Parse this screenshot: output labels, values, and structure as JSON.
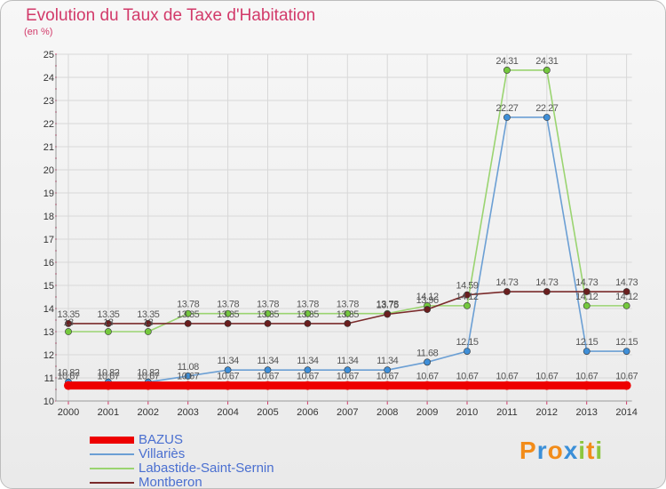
{
  "title": "Evolution du Taux de Taxe d'Habitation",
  "unit": "(en %)",
  "logo": "Proxiti",
  "colors": {
    "axis_tick": "#d23a6a",
    "grid": "#d8d8d8",
    "label": "#555555",
    "legend_text": "#4a6fd0"
  },
  "chart_data": {
    "type": "line",
    "x": [
      "2000",
      "2001",
      "2002",
      "2003",
      "2004",
      "2005",
      "2006",
      "2007",
      "2008",
      "2009",
      "2010",
      "2011",
      "2012",
      "2013",
      "2014"
    ],
    "ylim": [
      10,
      25
    ],
    "yticks": [
      10,
      11,
      12,
      13,
      14,
      15,
      16,
      17,
      18,
      19,
      20,
      21,
      22,
      23,
      24,
      25
    ],
    "grid": true,
    "legend_position": "bottom-left",
    "series": [
      {
        "name": "BAZUS",
        "color": "#ee0000",
        "marker": "#ee0000",
        "thick": true,
        "values": [
          10.67,
          10.67,
          10.67,
          10.67,
          10.67,
          10.67,
          10.67,
          10.67,
          10.67,
          10.67,
          10.67,
          10.67,
          10.67,
          10.67,
          10.67
        ],
        "labels": [
          "10.67",
          "10.67",
          "10.67",
          "10.67",
          "10.67",
          "10.67",
          "10.67",
          "10.67",
          "10.67",
          "10.67",
          "10.67",
          "10.67",
          "10.67",
          "10.67",
          "10.67"
        ]
      },
      {
        "name": "Villariès",
        "color": "#6b9fd4",
        "marker": "#3f8fd8",
        "values": [
          10.82,
          10.82,
          10.82,
          11.08,
          11.34,
          11.34,
          11.34,
          11.34,
          11.34,
          11.68,
          12.15,
          22.27,
          22.27,
          12.15,
          12.15
        ],
        "labels": [
          "10.82",
          "10.82",
          "10.82",
          "11.08",
          "11.34",
          "11.34",
          "11.34",
          "11.34",
          "11.34",
          "11.68",
          "12.15",
          "22.27",
          "22.27",
          "12.15",
          "12.15"
        ]
      },
      {
        "name": "Labastide-Saint-Sernin",
        "color": "#9ad470",
        "marker": "#74c83d",
        "values": [
          13.0,
          13.0,
          13.0,
          13.78,
          13.78,
          13.78,
          13.78,
          13.78,
          13.78,
          14.12,
          14.12,
          24.31,
          24.31,
          14.12,
          14.12
        ],
        "labels": [
          "13",
          "13",
          "13",
          "13.78",
          "13.78",
          "13.78",
          "13.78",
          "13.78",
          "13.78",
          "14.12",
          "14.12",
          "24.31",
          "24.31",
          "14.12",
          "14.12"
        ]
      },
      {
        "name": "Montberon",
        "color": "#7a2b2b",
        "marker": "#6a1e1e",
        "values": [
          13.35,
          13.35,
          13.35,
          13.35,
          13.35,
          13.35,
          13.35,
          13.35,
          13.75,
          13.96,
          14.59,
          14.73,
          14.73,
          14.73,
          14.73
        ],
        "labels": [
          "13.35",
          "13.35",
          "13.35",
          "13.35",
          "13.35",
          "13.35",
          "13.35",
          "13.35",
          "13.75",
          "13.96",
          "14.59",
          "14.73",
          "14.73",
          "14.73",
          "14.73"
        ]
      }
    ]
  }
}
